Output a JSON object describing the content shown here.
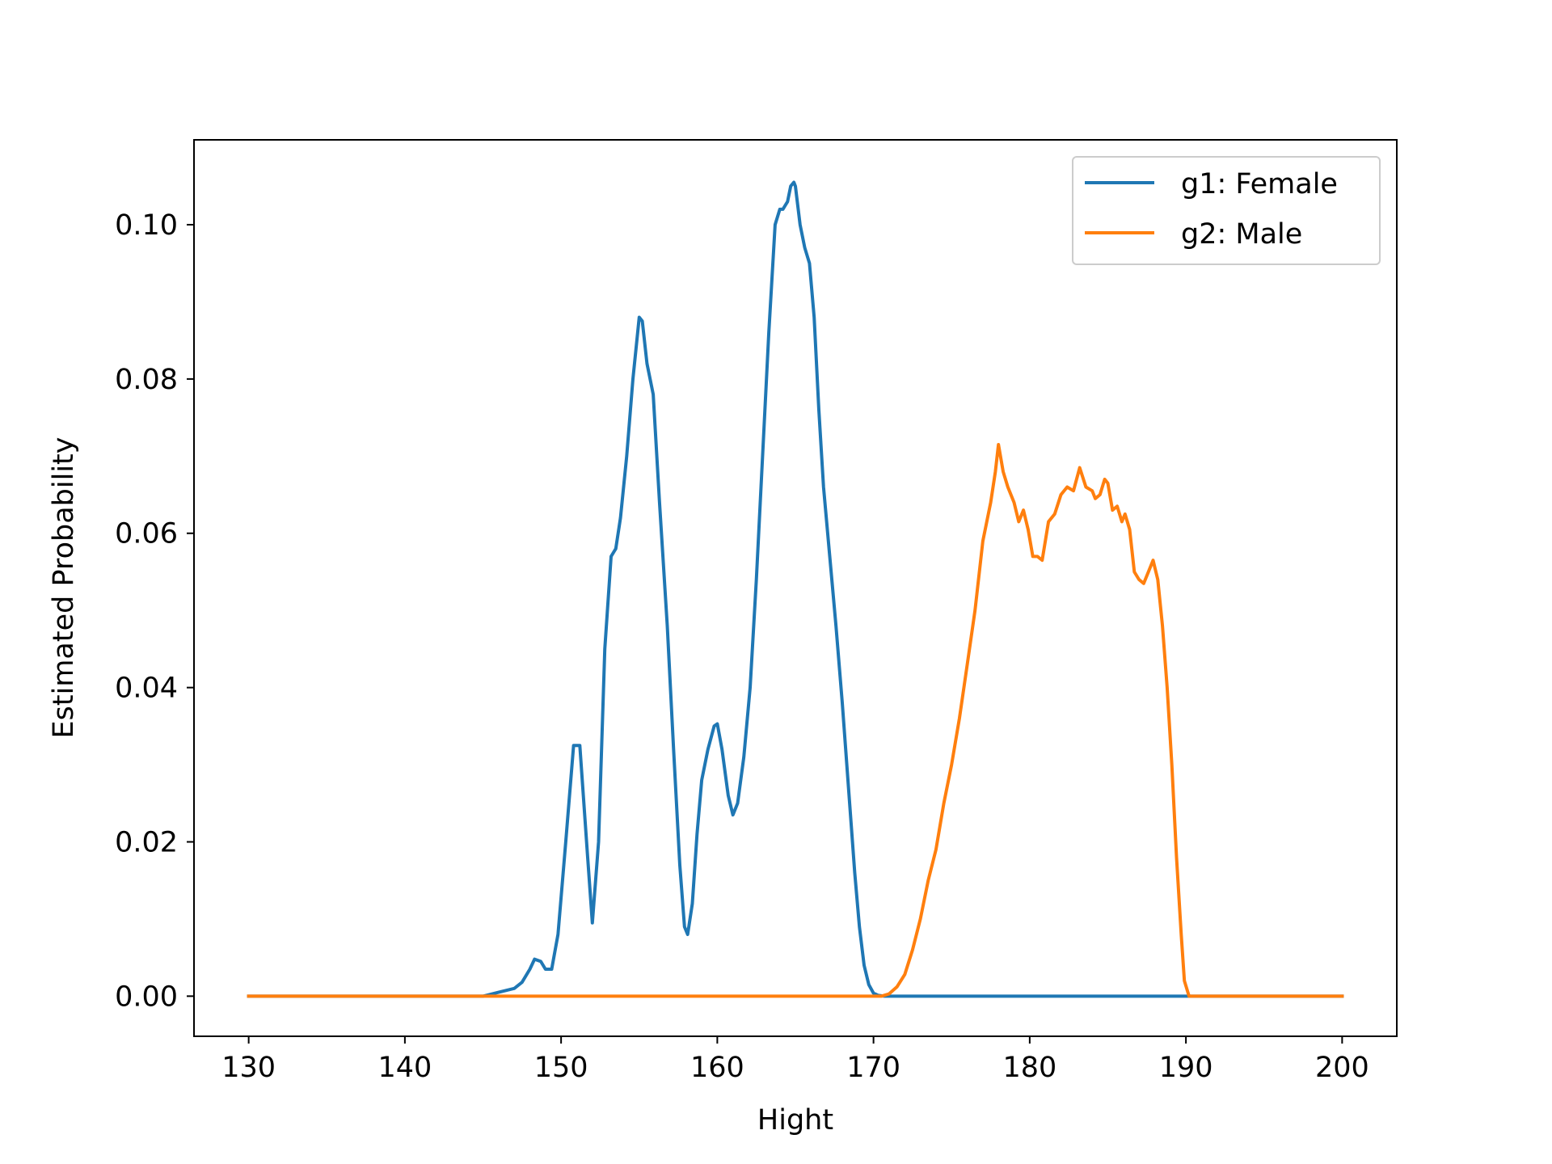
{
  "chart_data": {
    "type": "line",
    "title": "",
    "xlabel": "Hight",
    "ylabel": "Estimated Probability",
    "xlim": [
      126.5,
      203.5
    ],
    "ylim": [
      -0.0052,
      0.111
    ],
    "xticks": [
      130,
      140,
      150,
      160,
      170,
      180,
      190,
      200
    ],
    "xtick_labels": [
      "130",
      "140",
      "150",
      "160",
      "170",
      "180",
      "190",
      "200"
    ],
    "yticks": [
      0.0,
      0.02,
      0.04,
      0.06,
      0.08,
      0.1
    ],
    "ytick_labels": [
      "0.00",
      "0.02",
      "0.04",
      "0.06",
      "0.08",
      "0.10"
    ],
    "grid": false,
    "legend_position": "top-right",
    "series": [
      {
        "name": "g1: Female",
        "color": "#1f77b4",
        "x": [
          130,
          145,
          146,
          147,
          147.5,
          148,
          148.3,
          148.7,
          149,
          149.4,
          149.8,
          150.3,
          150.8,
          151.2,
          151.7,
          152.0,
          152.4,
          152.8,
          153.2,
          153.5,
          153.8,
          154.2,
          154.6,
          155.0,
          155.2,
          155.5,
          155.9,
          156.3,
          156.8,
          157.2,
          157.6,
          157.9,
          158.1,
          158.4,
          158.7,
          159.0,
          159.4,
          159.8,
          160.0,
          160.3,
          160.7,
          161.0,
          161.3,
          161.7,
          162.1,
          162.5,
          162.9,
          163.3,
          163.7,
          164.0,
          164.2,
          164.5,
          164.7,
          164.9,
          165.0,
          165.3,
          165.6,
          165.9,
          166.2,
          166.5,
          166.8,
          167.2,
          167.6,
          168.0,
          168.4,
          168.8,
          169.1,
          169.4,
          169.7,
          170.0,
          170.3,
          170.7,
          171,
          175,
          185,
          193,
          200
        ],
        "y": [
          0.0,
          0.0,
          0.0005,
          0.001,
          0.0018,
          0.0035,
          0.0048,
          0.0045,
          0.0035,
          0.0035,
          0.008,
          0.02,
          0.0325,
          0.0325,
          0.018,
          0.0095,
          0.02,
          0.045,
          0.057,
          0.058,
          0.062,
          0.07,
          0.08,
          0.088,
          0.0875,
          0.082,
          0.078,
          0.064,
          0.048,
          0.032,
          0.017,
          0.009,
          0.008,
          0.012,
          0.021,
          0.028,
          0.032,
          0.035,
          0.0353,
          0.032,
          0.026,
          0.0235,
          0.025,
          0.031,
          0.04,
          0.054,
          0.07,
          0.086,
          0.1,
          0.102,
          0.102,
          0.103,
          0.105,
          0.1055,
          0.105,
          0.1,
          0.097,
          0.095,
          0.088,
          0.076,
          0.066,
          0.057,
          0.048,
          0.038,
          0.027,
          0.016,
          0.009,
          0.004,
          0.0015,
          0.0004,
          0.0001,
          0.0,
          0.0,
          0.0,
          0.0,
          0.0,
          0.0
        ]
      },
      {
        "name": "g2: Male",
        "color": "#ff7f0e",
        "x": [
          130,
          170.5,
          171,
          171.5,
          172,
          172.5,
          173,
          173.5,
          174,
          174.5,
          175,
          175.5,
          176,
          176.5,
          177,
          177.5,
          177.8,
          178,
          178.3,
          178.6,
          179,
          179.3,
          179.6,
          179.9,
          180.2,
          180.5,
          180.8,
          181.2,
          181.6,
          182.0,
          182.4,
          182.8,
          183.2,
          183.6,
          184.0,
          184.2,
          184.5,
          184.8,
          185.0,
          185.3,
          185.6,
          185.9,
          186.1,
          186.4,
          186.7,
          187.0,
          187.3,
          187.6,
          187.9,
          188.2,
          188.5,
          188.8,
          189.1,
          189.4,
          189.7,
          189.9,
          190.2,
          190.5,
          190.8,
          191.1,
          191.4,
          191.7,
          192.0,
          192.3,
          192.6,
          193.0,
          200
        ],
        "y": [
          0.0,
          0.0,
          0.0003,
          0.0012,
          0.0028,
          0.006,
          0.01,
          0.015,
          0.019,
          0.025,
          0.03,
          0.036,
          0.043,
          0.05,
          0.059,
          0.064,
          0.068,
          0.0715,
          0.068,
          0.066,
          0.064,
          0.0615,
          0.063,
          0.0605,
          0.057,
          0.057,
          0.0565,
          0.0615,
          0.0625,
          0.065,
          0.066,
          0.0655,
          0.0685,
          0.066,
          0.0655,
          0.0645,
          0.065,
          0.067,
          0.0665,
          0.063,
          0.0635,
          0.0615,
          0.0625,
          0.0605,
          0.055,
          0.054,
          0.0535,
          0.055,
          0.0565,
          0.054,
          0.048,
          0.04,
          0.03,
          0.018,
          0.008,
          0.002,
          0.0,
          0.0,
          0.0,
          0.0,
          0.0,
          0.0,
          0.0,
          0.0,
          0.0,
          0.0,
          0.0
        ]
      }
    ]
  }
}
